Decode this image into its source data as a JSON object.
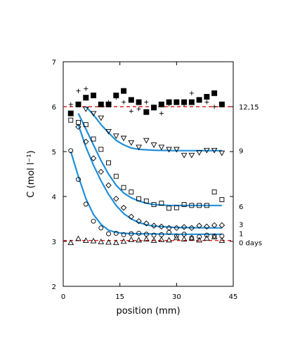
{
  "chart_data": {
    "type": "scatter",
    "xlabel": "position (mm)",
    "ylabel": "C (mol l⁻¹)",
    "xlim": [
      0,
      45
    ],
    "ylim": [
      2,
      7
    ],
    "xticks": [
      0,
      15,
      30,
      45
    ],
    "yticks": [
      2,
      3,
      4,
      5,
      6,
      7
    ],
    "grid": false,
    "colors": {
      "fit": "#1f8fd8",
      "reference": "#e02020",
      "marker": "#000000"
    },
    "reference_lines": [
      6.0,
      3.02
    ],
    "series": [
      {
        "name": "0 days",
        "marker": "triangle-up",
        "points": [
          [
            2,
            2.97
          ],
          [
            4,
            3.06
          ],
          [
            6,
            3.02
          ],
          [
            8,
            3.01
          ],
          [
            10,
            2.99
          ],
          [
            12,
            2.98
          ],
          [
            14,
            2.97
          ],
          [
            16,
            3.0
          ],
          [
            18,
            3.04
          ],
          [
            20,
            3.03
          ],
          [
            22,
            3.05
          ],
          [
            24,
            3.02
          ],
          [
            26,
            3.04
          ],
          [
            28,
            3.03
          ],
          [
            30,
            3.08
          ],
          [
            32,
            3.05
          ],
          [
            34,
            3.07
          ],
          [
            36,
            3.03
          ],
          [
            38,
            3.07
          ],
          [
            40,
            3.1
          ],
          [
            42,
            3.02
          ]
        ]
      },
      {
        "name": "1",
        "marker": "circle",
        "points": [
          [
            2,
            5.02
          ],
          [
            4,
            4.38
          ],
          [
            6,
            3.83
          ],
          [
            8,
            3.45
          ],
          [
            10,
            3.3
          ],
          [
            12,
            3.17
          ],
          [
            14,
            3.18
          ],
          [
            16,
            3.15
          ],
          [
            18,
            3.17
          ],
          [
            20,
            3.18
          ],
          [
            22,
            3.16
          ],
          [
            24,
            3.14
          ],
          [
            26,
            3.15
          ],
          [
            28,
            3.2
          ],
          [
            30,
            3.12
          ],
          [
            32,
            3.16
          ],
          [
            34,
            3.08
          ],
          [
            36,
            3.1
          ],
          [
            38,
            3.14
          ],
          [
            40,
            3.12
          ],
          [
            42,
            3.12
          ]
        ],
        "fit": [
          [
            2,
            5.0
          ],
          [
            4,
            4.45
          ],
          [
            6,
            3.95
          ],
          [
            8,
            3.6
          ],
          [
            10,
            3.38
          ],
          [
            12,
            3.25
          ],
          [
            14,
            3.2
          ],
          [
            16,
            3.18
          ],
          [
            20,
            3.17
          ],
          [
            30,
            3.16
          ],
          [
            42,
            3.16
          ]
        ]
      },
      {
        "name": "3",
        "marker": "diamond",
        "points": [
          [
            4,
            5.55
          ],
          [
            6,
            5.22
          ],
          [
            8,
            4.85
          ],
          [
            10,
            4.55
          ],
          [
            12,
            4.25
          ],
          [
            14,
            3.95
          ],
          [
            16,
            3.75
          ],
          [
            18,
            3.55
          ],
          [
            20,
            3.45
          ],
          [
            22,
            3.4
          ],
          [
            24,
            3.35
          ],
          [
            26,
            3.33
          ],
          [
            28,
            3.3
          ],
          [
            30,
            3.3
          ],
          [
            32,
            3.32
          ],
          [
            34,
            3.3
          ],
          [
            36,
            3.35
          ],
          [
            38,
            3.33
          ],
          [
            40,
            3.36
          ],
          [
            42,
            3.36
          ]
        ],
        "fit": [
          [
            4,
            5.6
          ],
          [
            6,
            5.1
          ],
          [
            8,
            4.7
          ],
          [
            10,
            4.35
          ],
          [
            12,
            4.05
          ],
          [
            14,
            3.8
          ],
          [
            16,
            3.62
          ],
          [
            18,
            3.5
          ],
          [
            20,
            3.42
          ],
          [
            22,
            3.37
          ],
          [
            24,
            3.34
          ],
          [
            30,
            3.31
          ],
          [
            42,
            3.3
          ]
        ]
      },
      {
        "name": "6",
        "marker": "square",
        "points": [
          [
            2,
            5.7
          ],
          [
            4,
            5.65
          ],
          [
            6,
            5.6
          ],
          [
            8,
            5.28
          ],
          [
            10,
            5.05
          ],
          [
            12,
            4.75
          ],
          [
            14,
            4.45
          ],
          [
            16,
            4.2
          ],
          [
            18,
            4.1
          ],
          [
            20,
            3.95
          ],
          [
            22,
            3.9
          ],
          [
            24,
            3.82
          ],
          [
            26,
            3.85
          ],
          [
            28,
            3.74
          ],
          [
            30,
            3.75
          ],
          [
            32,
            3.82
          ],
          [
            34,
            3.8
          ],
          [
            36,
            3.8
          ],
          [
            38,
            3.8
          ],
          [
            40,
            4.1
          ],
          [
            42,
            3.93
          ]
        ],
        "fit": [
          [
            4,
            5.85
          ],
          [
            6,
            5.5
          ],
          [
            8,
            5.15
          ],
          [
            10,
            4.8
          ],
          [
            12,
            4.5
          ],
          [
            14,
            4.25
          ],
          [
            16,
            4.08
          ],
          [
            18,
            3.97
          ],
          [
            20,
            3.9
          ],
          [
            22,
            3.85
          ],
          [
            24,
            3.82
          ],
          [
            28,
            3.8
          ],
          [
            42,
            3.8
          ]
        ]
      },
      {
        "name": "9",
        "marker": "triangle-down",
        "points": [
          [
            6,
            5.95
          ],
          [
            8,
            5.85
          ],
          [
            10,
            5.75
          ],
          [
            12,
            5.45
          ],
          [
            14,
            5.35
          ],
          [
            16,
            5.3
          ],
          [
            18,
            5.2
          ],
          [
            20,
            5.1
          ],
          [
            22,
            5.25
          ],
          [
            24,
            5.15
          ],
          [
            26,
            5.1
          ],
          [
            28,
            5.05
          ],
          [
            30,
            5.05
          ],
          [
            32,
            4.92
          ],
          [
            34,
            4.92
          ],
          [
            36,
            4.98
          ],
          [
            38,
            5.03
          ],
          [
            40,
            5.03
          ],
          [
            42,
            4.97
          ]
        ],
        "fit": [
          [
            6,
            6.0
          ],
          [
            8,
            5.82
          ],
          [
            10,
            5.6
          ],
          [
            12,
            5.42
          ],
          [
            14,
            5.25
          ],
          [
            16,
            5.15
          ],
          [
            18,
            5.08
          ],
          [
            20,
            5.05
          ],
          [
            24,
            5.03
          ],
          [
            30,
            5.02
          ],
          [
            42,
            5.02
          ]
        ]
      },
      {
        "name": "12,15",
        "markers": [
          "plus",
          "filled-square"
        ],
        "points": [
          [
            2,
            6.05
          ],
          [
            4,
            6.35
          ],
          [
            6,
            6.4
          ],
          [
            8,
            6.25
          ],
          [
            10,
            6.05
          ],
          [
            12,
            6.1
          ],
          [
            14,
            6.2
          ],
          [
            16,
            6.1
          ],
          [
            18,
            5.9
          ],
          [
            20,
            5.95
          ],
          [
            22,
            6.1
          ],
          [
            24,
            6.0
          ],
          [
            26,
            5.85
          ],
          [
            28,
            6.05
          ],
          [
            30,
            6.1
          ],
          [
            32,
            6.05
          ],
          [
            34,
            6.3
          ],
          [
            36,
            6.15
          ],
          [
            38,
            6.1
          ],
          [
            40,
            6.0
          ],
          [
            42,
            6.05
          ]
        ],
        "points_filled": [
          [
            2,
            5.85
          ],
          [
            4,
            6.05
          ],
          [
            6,
            6.2
          ],
          [
            8,
            6.25
          ],
          [
            10,
            6.05
          ],
          [
            12,
            6.05
          ],
          [
            14,
            6.25
          ],
          [
            16,
            6.35
          ],
          [
            18,
            6.15
          ],
          [
            20,
            6.1
          ],
          [
            22,
            5.88
          ],
          [
            24,
            5.98
          ],
          [
            26,
            6.05
          ],
          [
            28,
            6.1
          ],
          [
            30,
            6.1
          ],
          [
            32,
            6.1
          ],
          [
            34,
            6.1
          ],
          [
            36,
            6.15
          ],
          [
            38,
            6.22
          ],
          [
            40,
            6.3
          ],
          [
            42,
            6.05
          ]
        ]
      }
    ],
    "labels": [
      {
        "text": "12,15",
        "y": 6.0
      },
      {
        "text": "9",
        "y": 5.02
      },
      {
        "text": "6",
        "y": 3.78
      },
      {
        "text": "3",
        "y": 3.38
      },
      {
        "text": "1",
        "y": 3.18
      },
      {
        "text": "0 days",
        "y": 2.98
      }
    ]
  }
}
